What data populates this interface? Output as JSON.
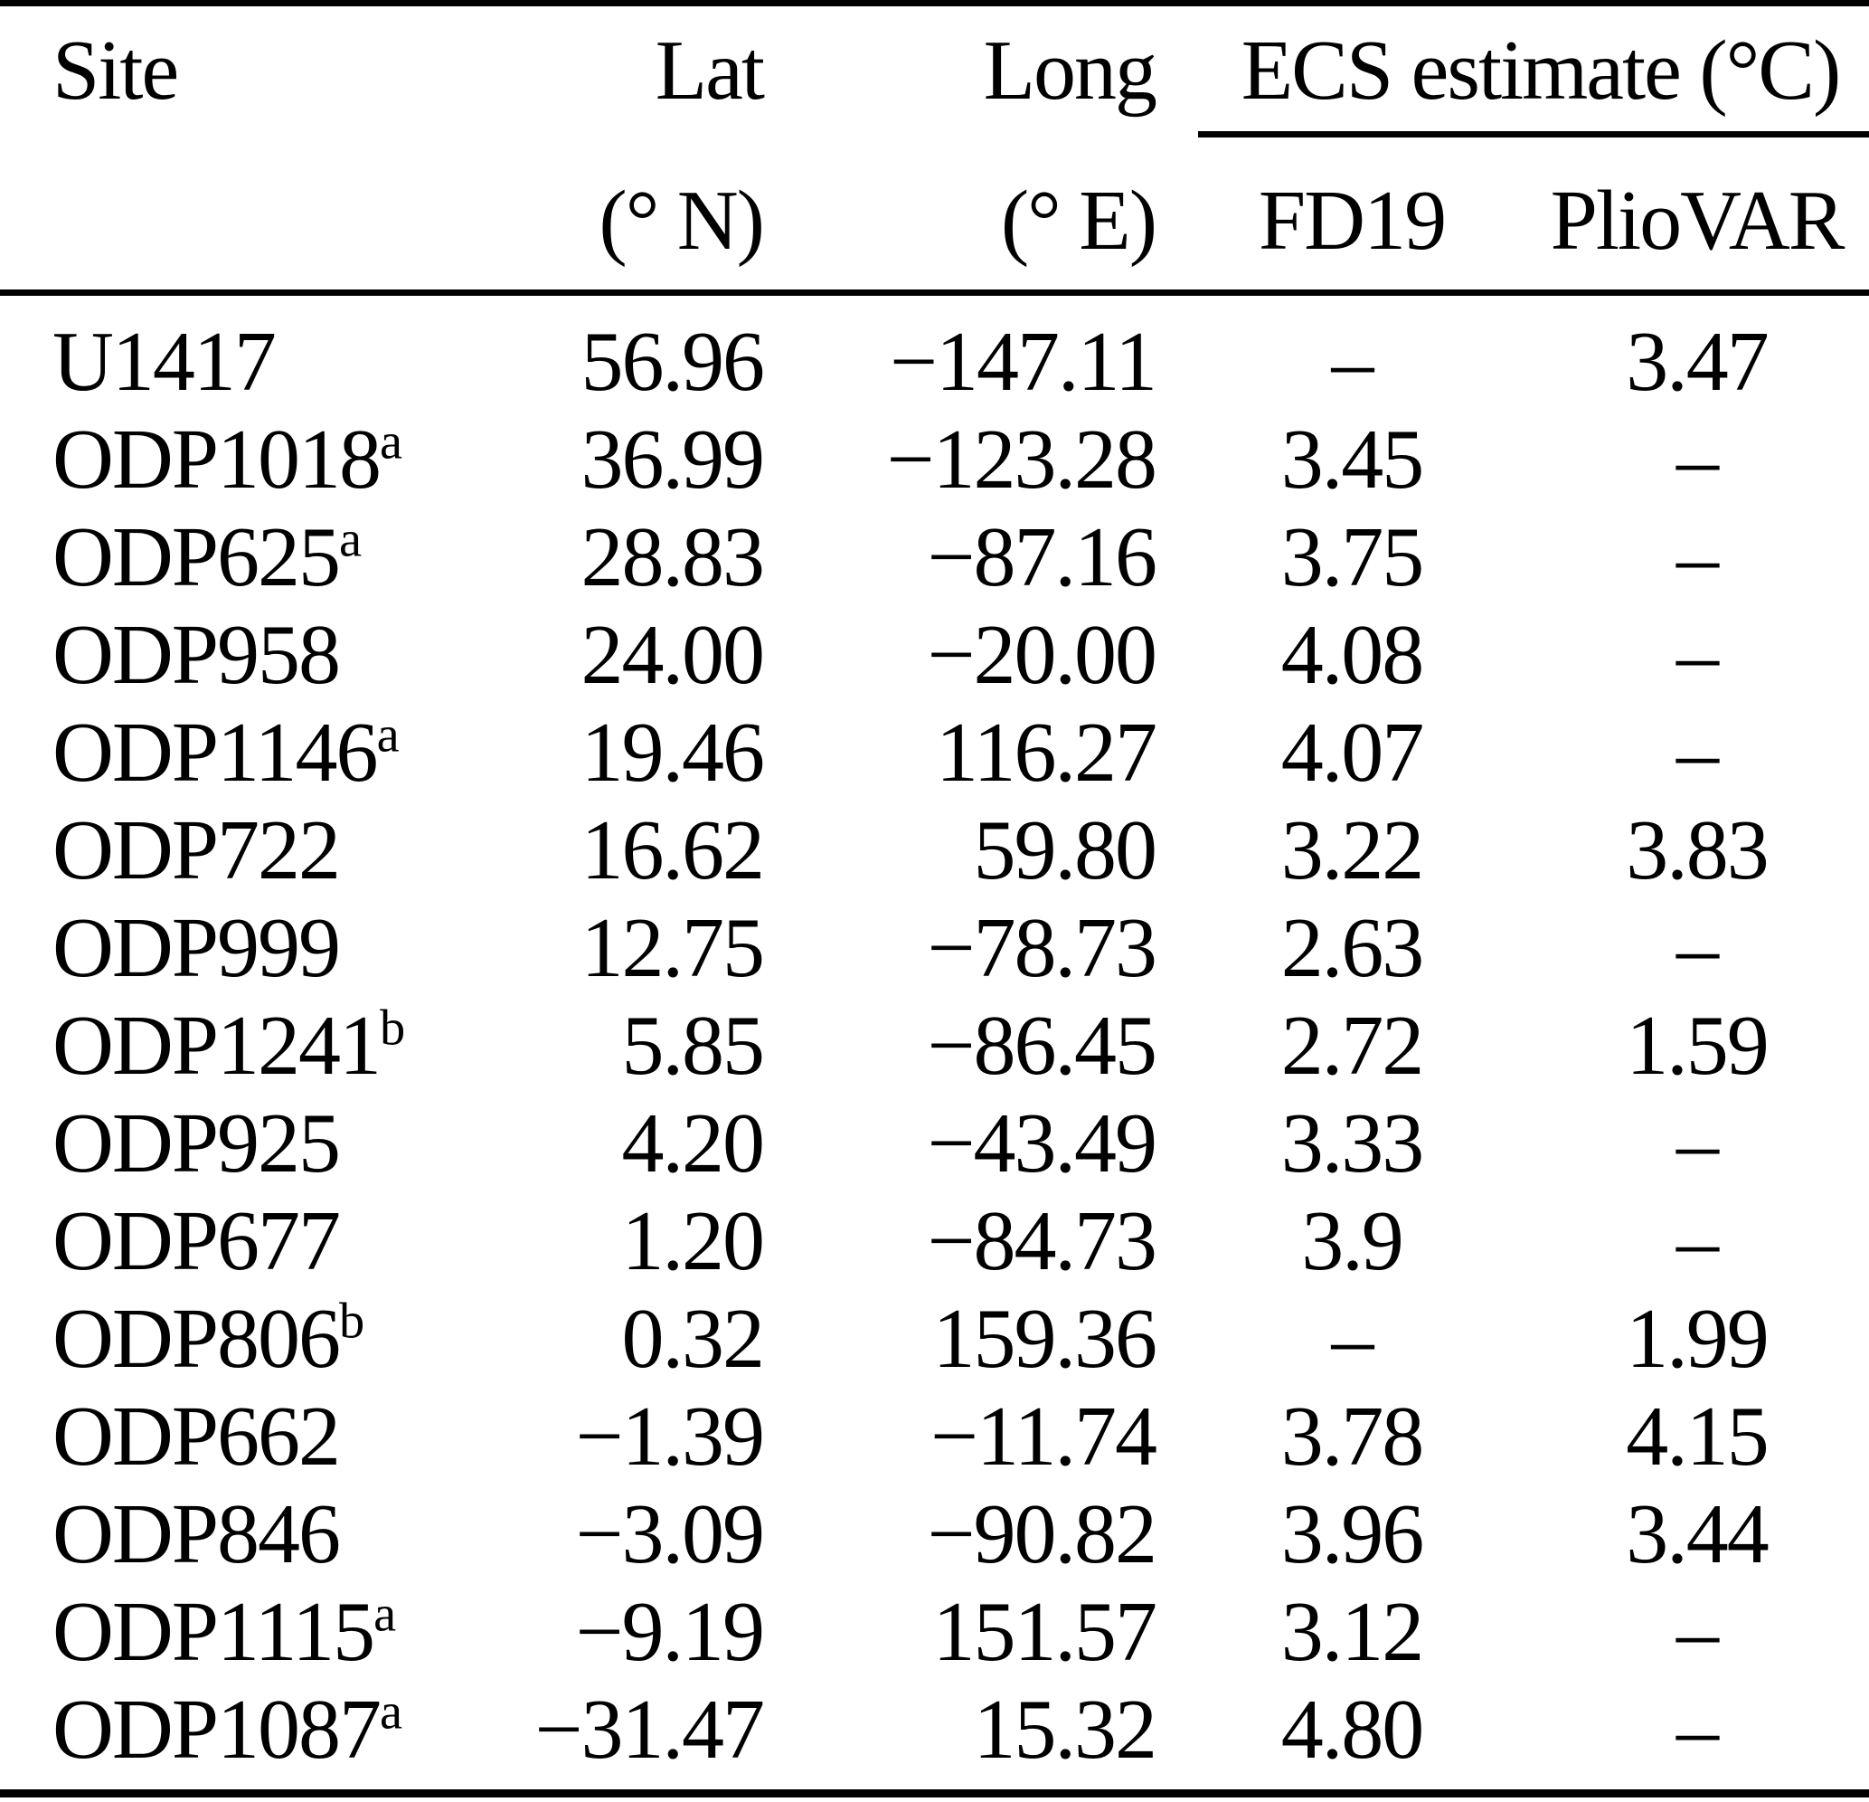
{
  "colors": {
    "text": "#000000",
    "background": "#ffffff",
    "rule": "#000000"
  },
  "header": {
    "site": "Site",
    "lat": {
      "label": "Lat",
      "unit": "(° N)"
    },
    "long": {
      "label": "Long",
      "unit": "(° E)"
    },
    "ecs_group": "ECS estimate (°C)",
    "fd19": "FD19",
    "pliovar": "PlioVAR"
  },
  "rows": [
    {
      "site": "U1417",
      "sup": "",
      "lat": "56.96",
      "long": "−147.11",
      "fd19": "–",
      "pliovar": "3.47"
    },
    {
      "site": "ODP1018",
      "sup": "a",
      "lat": "36.99",
      "long": "−123.28",
      "fd19": "3.45",
      "pliovar": "–"
    },
    {
      "site": "ODP625",
      "sup": "a",
      "lat": "28.83",
      "long": "−87.16",
      "fd19": "3.75",
      "pliovar": "–"
    },
    {
      "site": "ODP958",
      "sup": "",
      "lat": "24.00",
      "long": "−20.00",
      "fd19": "4.08",
      "pliovar": "–"
    },
    {
      "site": "ODP1146",
      "sup": "a",
      "lat": "19.46",
      "long": "116.27",
      "fd19": "4.07",
      "pliovar": "–"
    },
    {
      "site": "ODP722",
      "sup": "",
      "lat": "16.62",
      "long": "59.80",
      "fd19": "3.22",
      "pliovar": "3.83"
    },
    {
      "site": "ODP999",
      "sup": "",
      "lat": "12.75",
      "long": "−78.73",
      "fd19": "2.63",
      "pliovar": "–"
    },
    {
      "site": "ODP1241",
      "sup": "b",
      "lat": "5.85",
      "long": "−86.45",
      "fd19": "2.72",
      "pliovar": "1.59"
    },
    {
      "site": "ODP925",
      "sup": "",
      "lat": "4.20",
      "long": "−43.49",
      "fd19": "3.33",
      "pliovar": "–"
    },
    {
      "site": "ODP677",
      "sup": "",
      "lat": "1.20",
      "long": "−84.73",
      "fd19": "3.9",
      "pliovar": "–"
    },
    {
      "site": "ODP806",
      "sup": "b",
      "lat": "0.32",
      "long": "159.36",
      "fd19": "–",
      "pliovar": "1.99"
    },
    {
      "site": "ODP662",
      "sup": "",
      "lat": "−1.39",
      "long": "−11.74",
      "fd19": "3.78",
      "pliovar": "4.15"
    },
    {
      "site": "ODP846",
      "sup": "",
      "lat": "−3.09",
      "long": "−90.82",
      "fd19": "3.96",
      "pliovar": "3.44"
    },
    {
      "site": "ODP1115",
      "sup": "a",
      "lat": "−9.19",
      "long": "151.57",
      "fd19": "3.12",
      "pliovar": "–"
    },
    {
      "site": "ODP1087",
      "sup": "a",
      "lat": "−31.47",
      "long": "15.32",
      "fd19": "4.80",
      "pliovar": "–"
    }
  ]
}
